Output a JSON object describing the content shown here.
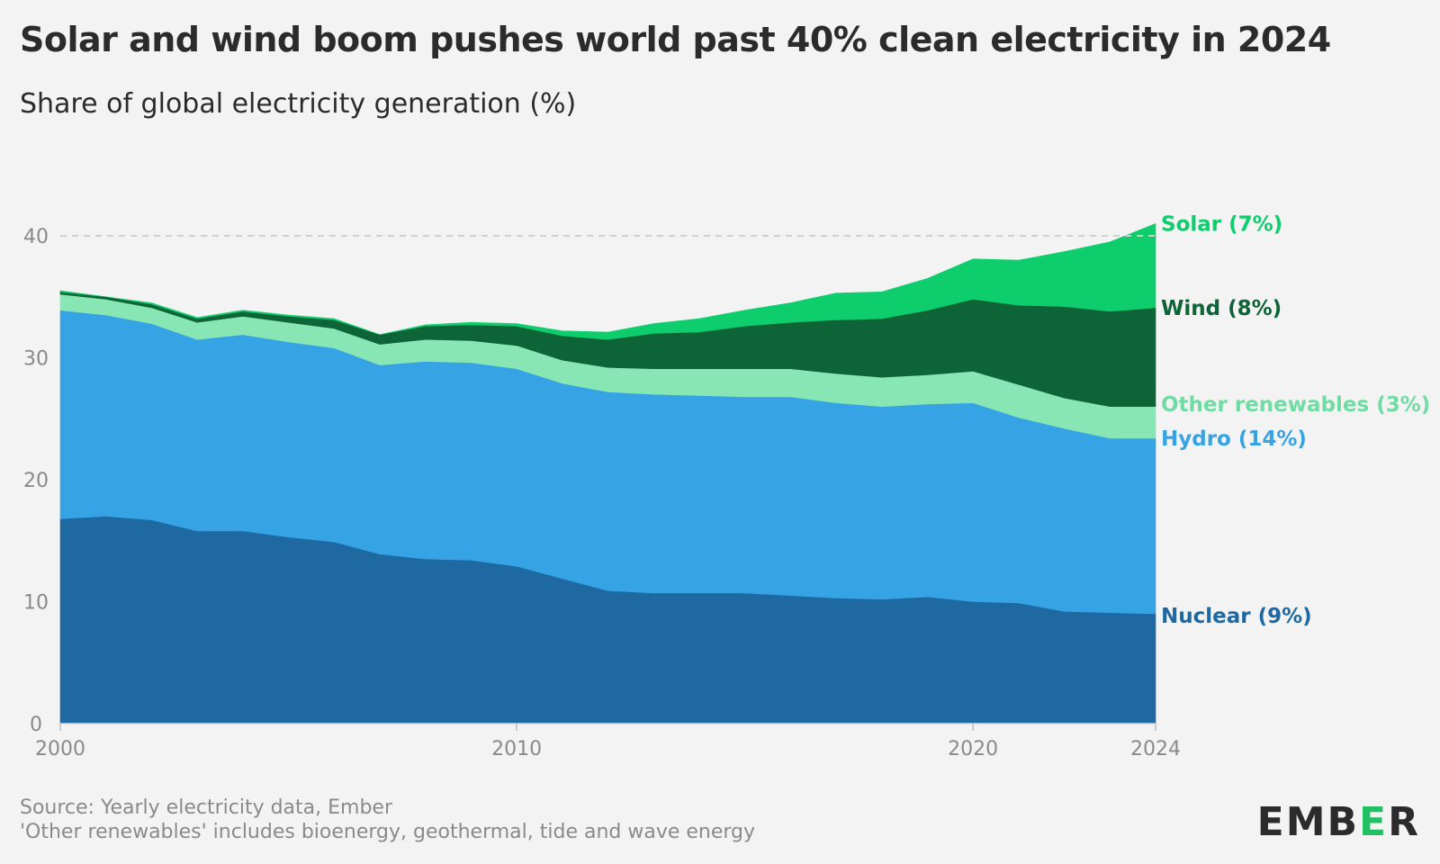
{
  "header": {
    "title": "Solar and wind boom pushes world past 40% clean electricity in 2024",
    "subtitle": "Share of global electricity generation (%)"
  },
  "footer": {
    "source": "Source: Yearly electricity data, Ember",
    "note": "'Other renewables' includes bioenergy, geothermal, tide and wave energy"
  },
  "logo": {
    "text_before": "EMB",
    "text_accent": "E",
    "text_after": "R"
  },
  "chart_data": {
    "type": "area",
    "stacked": true,
    "grid": false,
    "legend": "labels at right end of each series",
    "x": [
      2000,
      2001,
      2002,
      2003,
      2004,
      2005,
      2006,
      2007,
      2008,
      2009,
      2010,
      2011,
      2012,
      2013,
      2014,
      2015,
      2016,
      2017,
      2018,
      2019,
      2020,
      2021,
      2022,
      2023,
      2024
    ],
    "xticks": [
      "2000",
      "2010",
      "2020",
      "2024"
    ],
    "yticks": [
      "0",
      "10",
      "20",
      "30",
      "40"
    ],
    "ylim": [
      0,
      45
    ],
    "reference_line": {
      "y": 40
    },
    "series": [
      {
        "name": "Nuclear (9%)",
        "color": "#1f69a3",
        "values": [
          16.8,
          17.0,
          16.7,
          15.8,
          15.8,
          15.3,
          14.9,
          13.9,
          13.5,
          13.4,
          12.9,
          11.9,
          10.9,
          10.7,
          10.7,
          10.7,
          10.5,
          10.3,
          10.2,
          10.4,
          10.0,
          9.9,
          9.2,
          9.1,
          9.0
        ]
      },
      {
        "name": "Hydro (14%)",
        "color": "#35a3e4",
        "values": [
          17.1,
          16.5,
          16.1,
          15.7,
          16.1,
          16.0,
          15.9,
          15.5,
          16.2,
          16.2,
          16.2,
          16.0,
          16.3,
          16.3,
          16.2,
          16.1,
          16.3,
          16.0,
          15.8,
          15.8,
          16.3,
          15.2,
          15.0,
          14.3,
          14.4
        ]
      },
      {
        "name": "Other renewables (3%)",
        "color": "#88e5b4",
        "values": [
          1.3,
          1.3,
          1.3,
          1.4,
          1.5,
          1.6,
          1.6,
          1.7,
          1.8,
          1.8,
          1.9,
          1.9,
          2.0,
          2.1,
          2.2,
          2.3,
          2.3,
          2.4,
          2.4,
          2.4,
          2.6,
          2.7,
          2.5,
          2.6,
          2.6
        ]
      },
      {
        "name": "Wind (8%)",
        "color": "#0c6437",
        "values": [
          0.2,
          0.2,
          0.3,
          0.3,
          0.4,
          0.5,
          0.7,
          0.8,
          1.1,
          1.3,
          1.6,
          2.0,
          2.3,
          2.9,
          3.0,
          3.5,
          3.8,
          4.4,
          4.8,
          5.3,
          5.9,
          6.5,
          7.5,
          7.8,
          8.1
        ]
      },
      {
        "name": "Solar (7%)",
        "color": "#0ecd6c",
        "values": [
          0.1,
          0.0,
          0.1,
          0.1,
          0.1,
          0.1,
          0.1,
          0.0,
          0.1,
          0.2,
          0.2,
          0.4,
          0.6,
          0.8,
          1.1,
          1.3,
          1.6,
          2.2,
          2.2,
          2.6,
          3.3,
          3.7,
          4.5,
          5.7,
          6.9
        ]
      }
    ]
  }
}
